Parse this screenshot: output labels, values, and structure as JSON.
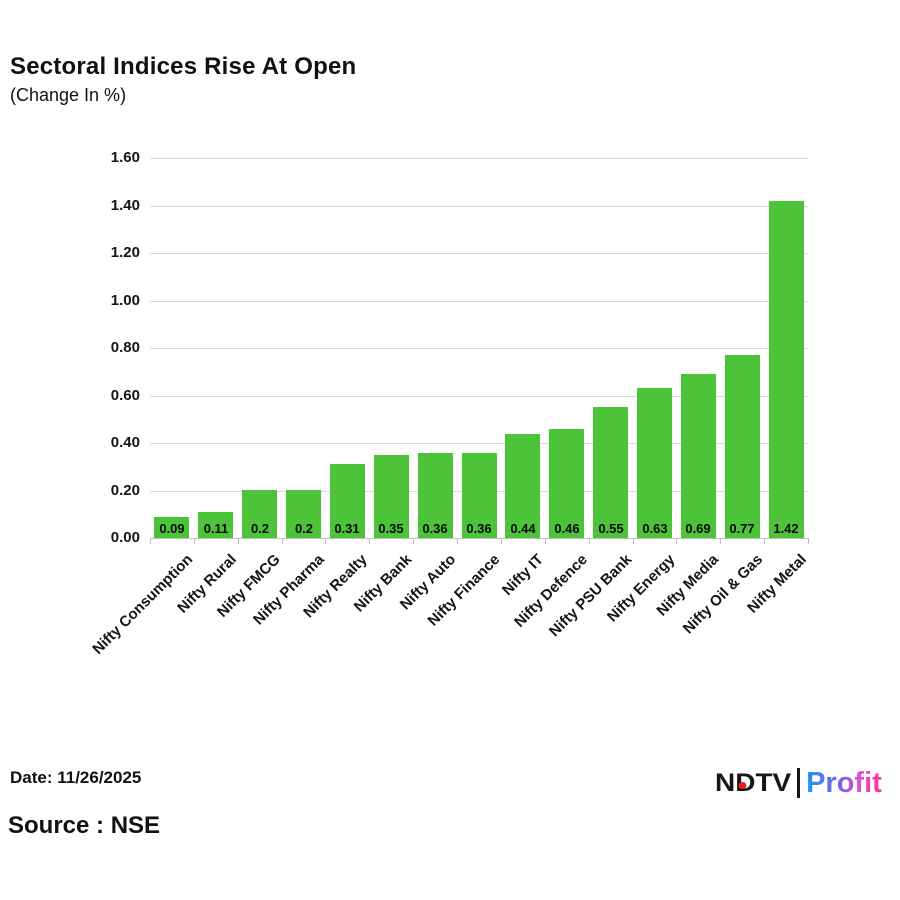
{
  "page": {
    "title": "Sectoral Indices Rise At Open",
    "subtitle": "(Change In %)"
  },
  "footer": {
    "date": "Date: 11/26/2025",
    "source": "Source : NSE"
  },
  "logo": {
    "brand": "NDTV",
    "separator": "|",
    "product": "Profit"
  },
  "colors": {
    "bar": "#4dc33a",
    "grid": "#d9d9d9",
    "axis": "#c0c0c0",
    "text": "#000000",
    "ndtv_dot": "#e52222",
    "profit_gradient": [
      "#2196f3",
      "#7b61e0",
      "#e14fd0",
      "#ff2d9b"
    ]
  },
  "chart_data": {
    "type": "bar",
    "title": "Sectoral Indices Rise At Open",
    "subtitle": "(Change In %)",
    "categories": [
      "Nifty Consumption",
      "Nifty Rural",
      "Nifty FMCG",
      "Nifty Pharma",
      "Nifty Realty",
      "Nifty Bank",
      "Nifty Auto",
      "Nifty Finance",
      "Nifty IT",
      "Nifty Defence",
      "Nifty PSU Bank",
      "Nifty Energy",
      "Nifty Media",
      "Nifty Oil & Gas",
      "Nifty Metal"
    ],
    "values": [
      0.09,
      0.11,
      0.2,
      0.2,
      0.31,
      0.35,
      0.36,
      0.36,
      0.44,
      0.46,
      0.55,
      0.63,
      0.69,
      0.77,
      1.42
    ],
    "value_labels": [
      "0.09",
      "0.11",
      "0.2",
      "0.2",
      "0.31",
      "0.35",
      "0.36",
      "0.36",
      "0.44",
      "0.46",
      "0.55",
      "0.63",
      "0.69",
      "0.77",
      "1.42"
    ],
    "y_ticks": [
      "0.00",
      "0.20",
      "0.40",
      "0.60",
      "0.80",
      "1.00",
      "1.20",
      "1.40",
      "1.60"
    ],
    "ylim": [
      0,
      1.6
    ],
    "grid": true,
    "legend": false,
    "bar_color": "#4dc33a",
    "value_label_position": "inside-base",
    "x_label_rotation_deg": 45
  }
}
